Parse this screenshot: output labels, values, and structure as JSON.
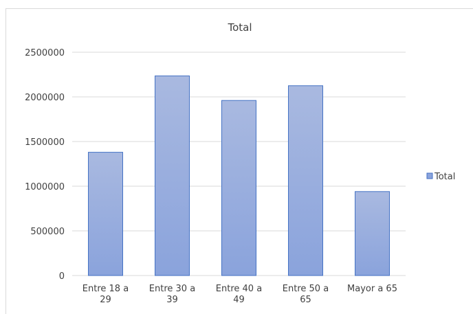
{
  "chart_data": {
    "type": "bar",
    "title": "Total",
    "categories": [
      [
        "Entre 18 a",
        "29"
      ],
      [
        "Entre 30 a",
        "39"
      ],
      [
        "Entre 40 a",
        "49"
      ],
      [
        "Entre 50 a",
        "65"
      ],
      [
        "Mayor a 65"
      ]
    ],
    "series": [
      {
        "name": "Total",
        "values": [
          1380000,
          2235000,
          1960000,
          2125000,
          940000
        ]
      }
    ],
    "yticks": [
      "0",
      "500000",
      "1000000",
      "1500000",
      "2000000",
      "2500000"
    ],
    "ylim": [
      0,
      2500000
    ],
    "grid": true,
    "legend": "right",
    "colors": {
      "bar_top": "#a9b9e0",
      "bar_bottom": "#8aa3dc",
      "bar_stroke": "#4472c4",
      "grid": "#d9d9d9",
      "text": "#404040"
    }
  }
}
